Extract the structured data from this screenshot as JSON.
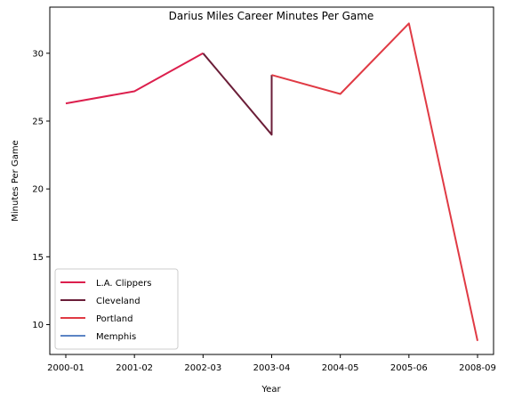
{
  "chart_data": {
    "type": "line",
    "title": "Darius Miles Career Minutes Per Game",
    "xlabel": "Year",
    "ylabel": "Minutes Per Game",
    "categories": [
      "2000-01",
      "2001-02",
      "2002-03",
      "2003-04",
      "2004-05",
      "2005-06",
      "2008-09"
    ],
    "ylim": [
      7.8,
      33.4
    ],
    "yticks": [
      10,
      15,
      20,
      25,
      30
    ],
    "grid": false,
    "legend_position": "bottom-left",
    "series": [
      {
        "name": "L.A. Clippers",
        "color": "#dc1f4d",
        "points": [
          {
            "x": "2000-01",
            "y": 26.3
          },
          {
            "x": "2001-02",
            "y": 27.2
          },
          {
            "x": "2002-03",
            "y": 30.0
          }
        ]
      },
      {
        "name": "Cleveland",
        "color": "#6b1e38",
        "points": [
          {
            "x": "2002-03",
            "y": 30.0
          },
          {
            "x": "2003-04",
            "y": 24.0
          },
          {
            "x": "2003-04",
            "y": 28.4
          }
        ]
      },
      {
        "name": "Portland",
        "color": "#e03a44",
        "points": [
          {
            "x": "2003-04",
            "y": 28.4
          },
          {
            "x": "2004-05",
            "y": 27.0
          },
          {
            "x": "2005-06",
            "y": 32.2
          },
          {
            "x": "2008-09",
            "y": 8.8
          }
        ]
      },
      {
        "name": "Memphis",
        "color": "#5b84c4",
        "points": []
      }
    ]
  }
}
